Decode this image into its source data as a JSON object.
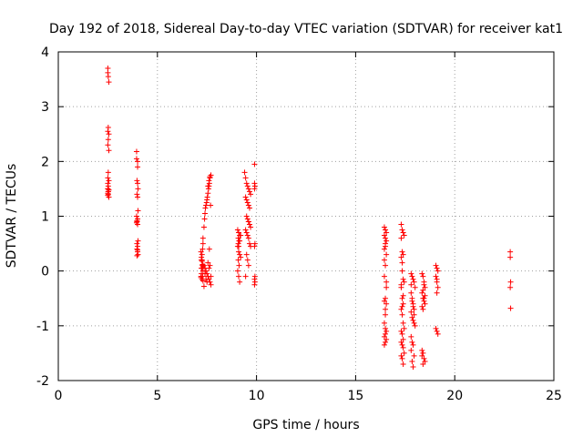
{
  "chart_data": {
    "type": "scatter",
    "title": "Day 192 of 2018, Sidereal Day-to-day VTEC variation (SDTVAR) for receiver kat1",
    "xlabel": "GPS time / hours",
    "ylabel": "SDTVAR / TECUs",
    "xlim": [
      0,
      25
    ],
    "ylim": [
      -2,
      4
    ],
    "xticks": [
      0,
      5,
      10,
      15,
      20,
      25
    ],
    "yticks": [
      -2,
      -1,
      0,
      1,
      2,
      3,
      4
    ],
    "xtick_labels": [
      "0",
      "5",
      "10",
      "15",
      "20",
      "25"
    ],
    "ytick_labels": [
      "-2",
      "-1",
      "0",
      "1",
      "2",
      "3",
      "4"
    ],
    "grid": true,
    "marker": "+",
    "series": [
      {
        "name": "SDTVAR",
        "color": "#ff0000",
        "x": [
          2.5,
          2.5,
          2.52,
          2.55,
          2.52,
          2.5,
          2.55,
          2.52,
          2.5,
          2.55,
          2.52,
          2.5,
          2.55,
          2.5,
          2.52,
          2.5,
          2.55,
          2.52,
          2.5,
          2.52,
          2.5,
          2.55,
          2.5,
          2.52,
          3.95,
          3.95,
          4.0,
          4.0,
          3.97,
          4.0,
          4.02,
          3.97,
          4.0,
          4.02,
          3.95,
          4.0,
          3.97,
          3.95,
          4.0,
          4.02,
          3.97,
          4.0,
          3.97,
          4.0,
          4.02,
          3.97,
          4.0,
          3.97,
          7.2,
          7.22,
          7.25,
          7.28,
          7.3,
          7.35,
          7.38,
          7.4,
          7.42,
          7.45,
          7.48,
          7.5,
          7.52,
          7.55,
          7.58,
          7.6,
          7.62,
          7.65,
          7.55,
          7.6,
          7.65,
          7.7,
          7.62,
          7.68,
          7.2,
          7.22,
          7.25,
          7.28,
          7.3,
          7.25,
          7.3,
          7.22,
          7.28,
          7.2,
          7.25,
          7.3,
          7.22,
          7.27,
          7.25,
          7.3,
          7.35,
          7.4,
          7.45,
          7.5,
          7.55,
          7.6,
          7.65,
          7.7,
          7.35,
          7.45,
          7.55,
          7.65,
          7.4,
          7.5,
          7.6,
          7.7,
          9.05,
          9.1,
          9.15,
          9.08,
          9.12,
          9.05,
          9.1,
          9.15,
          9.08,
          9.12,
          9.05,
          9.1,
          9.15,
          9.2,
          9.1,
          9.15,
          9.2,
          9.08,
          9.4,
          9.45,
          9.5,
          9.55,
          9.6,
          9.65,
          9.7,
          9.45,
          9.5,
          9.55,
          9.6,
          9.65,
          9.5,
          9.55,
          9.6,
          9.65,
          9.7,
          9.45,
          9.5,
          9.55,
          9.6,
          9.65,
          9.7,
          9.5,
          9.55,
          9.6,
          9.45,
          9.6,
          9.9,
          9.9,
          9.92,
          9.9,
          9.92,
          9.9,
          9.92,
          9.9,
          9.92,
          9.9,
          16.45,
          16.5,
          16.55,
          16.45,
          16.5,
          16.55,
          16.5,
          16.45,
          16.55,
          16.5,
          16.45,
          16.55,
          16.5,
          16.45,
          16.55,
          16.5,
          16.45,
          16.5,
          16.55,
          16.5,
          16.45,
          16.55,
          16.5,
          16.5,
          16.45,
          16.55,
          16.5,
          16.45,
          17.3,
          17.35,
          17.4,
          17.45,
          17.3,
          17.35,
          17.4,
          17.3,
          17.35,
          17.4,
          17.45,
          17.3,
          17.35,
          17.4,
          17.3,
          17.35,
          17.4,
          17.45,
          17.3,
          17.35,
          17.4,
          17.3,
          17.35,
          17.4,
          17.45,
          17.3,
          17.35,
          17.4,
          17.35,
          17.3,
          17.4,
          17.35,
          17.8,
          17.85,
          17.9,
          17.95,
          18.0,
          17.8,
          17.85,
          17.9,
          17.95,
          17.8,
          17.85,
          17.9,
          17.95,
          18.0,
          17.85,
          17.9,
          17.8,
          17.95,
          17.85,
          17.9,
          17.8,
          17.85,
          17.9,
          17.95,
          17.8,
          18.35,
          18.4,
          18.45,
          18.5,
          18.35,
          18.4,
          18.45,
          18.5,
          18.35,
          18.4,
          18.45,
          18.4,
          18.35,
          18.45,
          18.5,
          18.4,
          18.35,
          18.45,
          18.4,
          18.5,
          19.05,
          19.1,
          19.15,
          19.05,
          19.1,
          19.15,
          19.1,
          19.05,
          19.1,
          19.15,
          19.1,
          22.8,
          22.8,
          22.82,
          22.8,
          22.82
        ],
        "y": [
          3.7,
          3.62,
          3.55,
          3.45,
          2.62,
          2.55,
          2.5,
          2.4,
          2.3,
          2.2,
          1.8,
          1.7,
          1.65,
          1.6,
          1.55,
          1.5,
          1.48,
          1.45,
          1.42,
          1.4,
          1.38,
          1.35,
          1.5,
          1.45,
          2.18,
          2.05,
          2.0,
          1.9,
          1.65,
          1.6,
          1.5,
          1.4,
          1.35,
          1.1,
          1.0,
          0.95,
          0.9,
          0.88,
          0.85,
          0.55,
          0.5,
          0.45,
          0.4,
          0.35,
          0.3,
          0.28,
          0.38,
          0.92,
          -0.1,
          0.05,
          0.2,
          0.4,
          0.6,
          0.8,
          0.95,
          1.05,
          1.15,
          1.2,
          1.25,
          1.3,
          1.35,
          1.42,
          1.5,
          1.55,
          1.6,
          1.7,
          1.55,
          1.65,
          1.72,
          1.75,
          0.4,
          1.2,
          0.35,
          0.25,
          0.18,
          0.12,
          0.08,
          0.05,
          0.0,
          -0.05,
          -0.1,
          -0.12,
          -0.15,
          -0.18,
          0.2,
          0.1,
          0.3,
          0.5,
          0.1,
          0.05,
          0.0,
          -0.05,
          -0.1,
          -0.15,
          -0.2,
          -0.25,
          -0.28,
          -0.15,
          0.15,
          0.1,
          -0.05,
          -0.2,
          0.05,
          -0.1,
          0.75,
          0.7,
          0.65,
          0.6,
          0.55,
          0.45,
          0.35,
          0.3,
          0.2,
          0.1,
          0.0,
          -0.1,
          -0.2,
          0.25,
          0.45,
          0.55,
          0.65,
          0.5,
          1.8,
          1.7,
          1.6,
          1.55,
          1.5,
          1.45,
          1.4,
          1.35,
          1.3,
          1.25,
          1.2,
          1.15,
          1.0,
          0.95,
          0.9,
          0.85,
          0.8,
          0.75,
          0.7,
          0.65,
          0.6,
          0.5,
          0.45,
          0.3,
          0.2,
          0.1,
          -0.1,
          0.9,
          1.95,
          1.6,
          1.55,
          1.5,
          0.5,
          0.45,
          -0.1,
          -0.15,
          -0.2,
          -0.25,
          0.8,
          0.75,
          0.7,
          0.65,
          0.6,
          0.55,
          0.5,
          0.4,
          0.3,
          0.1,
          -0.1,
          -0.3,
          -0.5,
          -0.55,
          -0.6,
          -0.7,
          -0.95,
          -1.05,
          -1.1,
          -1.15,
          -1.2,
          -1.25,
          -1.3,
          0.45,
          0.2,
          -0.2,
          -0.8,
          -1.35,
          0.85,
          0.75,
          0.7,
          0.65,
          0.6,
          0.35,
          0.3,
          0.25,
          0.0,
          -0.15,
          -0.2,
          -0.3,
          -0.5,
          -0.6,
          -0.7,
          -0.8,
          -0.95,
          -1.05,
          -1.1,
          -1.15,
          -1.25,
          -1.3,
          -1.35,
          -1.4,
          -1.5,
          -1.55,
          -1.6,
          -1.7,
          0.15,
          -0.25,
          -0.45,
          -0.65,
          -0.05,
          -0.1,
          -0.15,
          -0.2,
          -0.3,
          -0.4,
          -0.5,
          -0.6,
          -0.7,
          -0.75,
          -0.85,
          -0.9,
          -0.95,
          -1.0,
          -1.3,
          -1.35,
          -1.45,
          -1.55,
          -1.65,
          -1.75,
          -0.25,
          -0.55,
          -0.65,
          -0.8,
          -1.2,
          -0.05,
          -0.1,
          -0.2,
          -0.3,
          -0.4,
          -0.5,
          -0.55,
          -0.6,
          -0.65,
          -0.7,
          -0.5,
          -1.5,
          -1.55,
          -1.6,
          -1.65,
          -1.7,
          -1.45,
          -0.25,
          -0.35,
          -0.45,
          0.1,
          0.05,
          0.0,
          -0.1,
          -0.2,
          -0.3,
          -0.4,
          -1.05,
          -1.1,
          -1.15,
          -0.15,
          0.35,
          0.25,
          -0.2,
          -0.3,
          -0.68
        ]
      }
    ]
  }
}
